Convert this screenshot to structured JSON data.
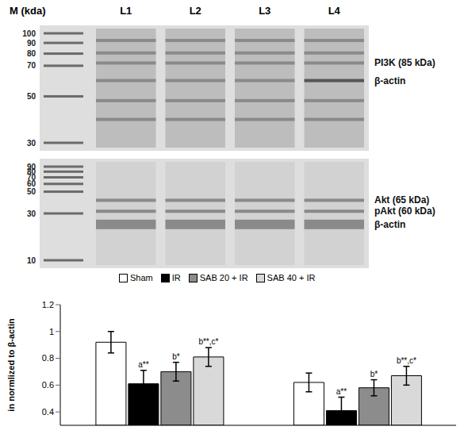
{
  "header": {
    "marker_label": "M (kda)",
    "lanes": [
      "L1",
      "L2",
      "L3",
      "L4"
    ]
  },
  "blots": [
    {
      "markers": [
        100,
        90,
        80,
        70,
        50,
        30
      ],
      "labels": [
        "PI3K (85 kDa)",
        "β-actin"
      ]
    },
    {
      "markers": [
        90,
        80,
        70,
        60,
        50,
        30,
        10
      ],
      "labels": [
        "Akt (65 kDa)",
        "pAkt (60 kDa)",
        "β-actin"
      ]
    }
  ],
  "chart_data": {
    "type": "bar",
    "categories": [
      null,
      null
    ],
    "y_label": "in normlized to β-actin",
    "ylim": [
      0.3,
      1.2
    ],
    "yticks": [
      0.4,
      0.6,
      0.8,
      1,
      1.2
    ],
    "legend": "top",
    "series": [
      {
        "name": "Sham",
        "color": "#ffffff",
        "values": [
          0.92,
          0.62
        ],
        "errors": [
          0.08,
          0.07
        ],
        "annotations": [
          null,
          null
        ]
      },
      {
        "name": "IR",
        "color": "#000000",
        "values": [
          0.61,
          0.41
        ],
        "errors": [
          0.1,
          0.1
        ],
        "annotations": [
          "a**",
          "a**"
        ]
      },
      {
        "name": "SAB 20 + IR",
        "color": "#8c8c8c",
        "values": [
          0.7,
          0.58
        ],
        "errors": [
          0.07,
          0.06
        ],
        "annotations": [
          "b*",
          "b*"
        ]
      },
      {
        "name": "SAB 40 + IR",
        "color": "#d9d9d9",
        "values": [
          0.81,
          0.67
        ],
        "errors": [
          0.07,
          0.07
        ],
        "annotations": [
          "b**,c*",
          "b**,c*"
        ]
      }
    ]
  }
}
